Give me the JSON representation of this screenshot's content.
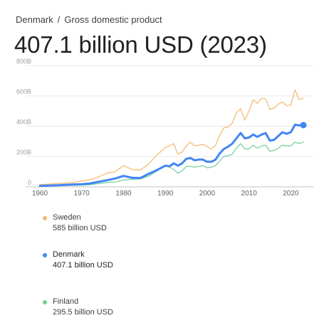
{
  "breadcrumb": {
    "country": "Denmark",
    "separator": "/",
    "metric": "Gross domestic product"
  },
  "headline": "407.1 billion USD (2023)",
  "legend": [
    {
      "name": "Sweden",
      "value": "585 billion USD",
      "color": "#f5b76b",
      "active": false
    },
    {
      "name": "Denmark",
      "value": "407.1 billion USD",
      "color": "#4285f4",
      "active": true
    },
    {
      "name": "Finland",
      "value": "295.5 billion USD",
      "color": "#6fcf97",
      "active": false
    }
  ],
  "chart_data": {
    "type": "line",
    "title": "",
    "xlabel": "",
    "ylabel": "",
    "xlim": [
      1960,
      2023
    ],
    "ylim": [
      0,
      800
    ],
    "y_ticks": [
      0,
      200,
      400,
      600,
      800
    ],
    "y_tick_labels": [
      "0",
      "200B",
      "400B",
      "600B",
      "800B"
    ],
    "x_ticks": [
      1960,
      1970,
      1980,
      1990,
      2000,
      2010,
      2020
    ],
    "x_tick_labels": [
      "1960",
      "1970",
      "1980",
      "1990",
      "2000",
      "2010",
      "2020"
    ],
    "grid": true,
    "series": [
      {
        "name": "Sweden",
        "color": "#f5b76b",
        "x": [
          1960,
          1962,
          1964,
          1966,
          1968,
          1970,
          1972,
          1974,
          1976,
          1978,
          1980,
          1982,
          1984,
          1986,
          1988,
          1990,
          1991,
          1992,
          1993,
          1994,
          1995,
          1996,
          1997,
          1998,
          1999,
          2000,
          2001,
          2002,
          2003,
          2004,
          2005,
          2006,
          2007,
          2008,
          2009,
          2010,
          2011,
          2012,
          2013,
          2014,
          2015,
          2016,
          2017,
          2018,
          2019,
          2020,
          2021,
          2022,
          2023
        ],
        "values": [
          15,
          18,
          21,
          25,
          28,
          38,
          47,
          66,
          90,
          100,
          140,
          115,
          110,
          150,
          210,
          260,
          270,
          285,
          215,
          230,
          270,
          295,
          270,
          275,
          280,
          265,
          250,
          275,
          340,
          390,
          395,
          420,
          490,
          515,
          440,
          500,
          575,
          550,
          585,
          580,
          510,
          520,
          545,
          560,
          535,
          540,
          640,
          575,
          585
        ]
      },
      {
        "name": "Denmark",
        "color": "#4285f4",
        "x": [
          1960,
          1962,
          1964,
          1966,
          1968,
          1970,
          1972,
          1974,
          1976,
          1978,
          1980,
          1982,
          1984,
          1986,
          1988,
          1990,
          1991,
          1992,
          1993,
          1994,
          1995,
          1996,
          1997,
          1998,
          1999,
          2000,
          2001,
          2002,
          2003,
          2004,
          2005,
          2006,
          2007,
          2008,
          2009,
          2010,
          2011,
          2012,
          2013,
          2014,
          2015,
          2016,
          2017,
          2018,
          2019,
          2020,
          2021,
          2022,
          2023
        ],
        "values": [
          6,
          8,
          10,
          13,
          15,
          17,
          22,
          33,
          43,
          55,
          72,
          60,
          58,
          85,
          110,
          140,
          135,
          155,
          140,
          155,
          185,
          190,
          175,
          180,
          180,
          165,
          165,
          180,
          220,
          250,
          265,
          285,
          320,
          355,
          320,
          325,
          345,
          330,
          345,
          355,
          305,
          310,
          335,
          360,
          350,
          360,
          410,
          405,
          407.1
        ]
      },
      {
        "name": "Finland",
        "color": "#6fcf97",
        "x": [
          1960,
          1962,
          1964,
          1966,
          1968,
          1970,
          1972,
          1974,
          1976,
          1978,
          1980,
          1982,
          1984,
          1986,
          1988,
          1990,
          1991,
          1992,
          1993,
          1994,
          1995,
          1996,
          1997,
          1998,
          1999,
          2000,
          2001,
          2002,
          2003,
          2004,
          2005,
          2006,
          2007,
          2008,
          2009,
          2010,
          2011,
          2012,
          2013,
          2014,
          2015,
          2016,
          2017,
          2018,
          2019,
          2020,
          2021,
          2022,
          2023
        ],
        "values": [
          5,
          6,
          8,
          9,
          10,
          11,
          14,
          21,
          28,
          32,
          45,
          50,
          52,
          70,
          105,
          140,
          130,
          115,
          90,
          105,
          135,
          135,
          130,
          135,
          140,
          125,
          130,
          140,
          170,
          200,
          205,
          215,
          255,
          285,
          250,
          250,
          275,
          255,
          270,
          275,
          235,
          240,
          255,
          275,
          270,
          270,
          295,
          285,
          295.5
        ]
      }
    ]
  }
}
